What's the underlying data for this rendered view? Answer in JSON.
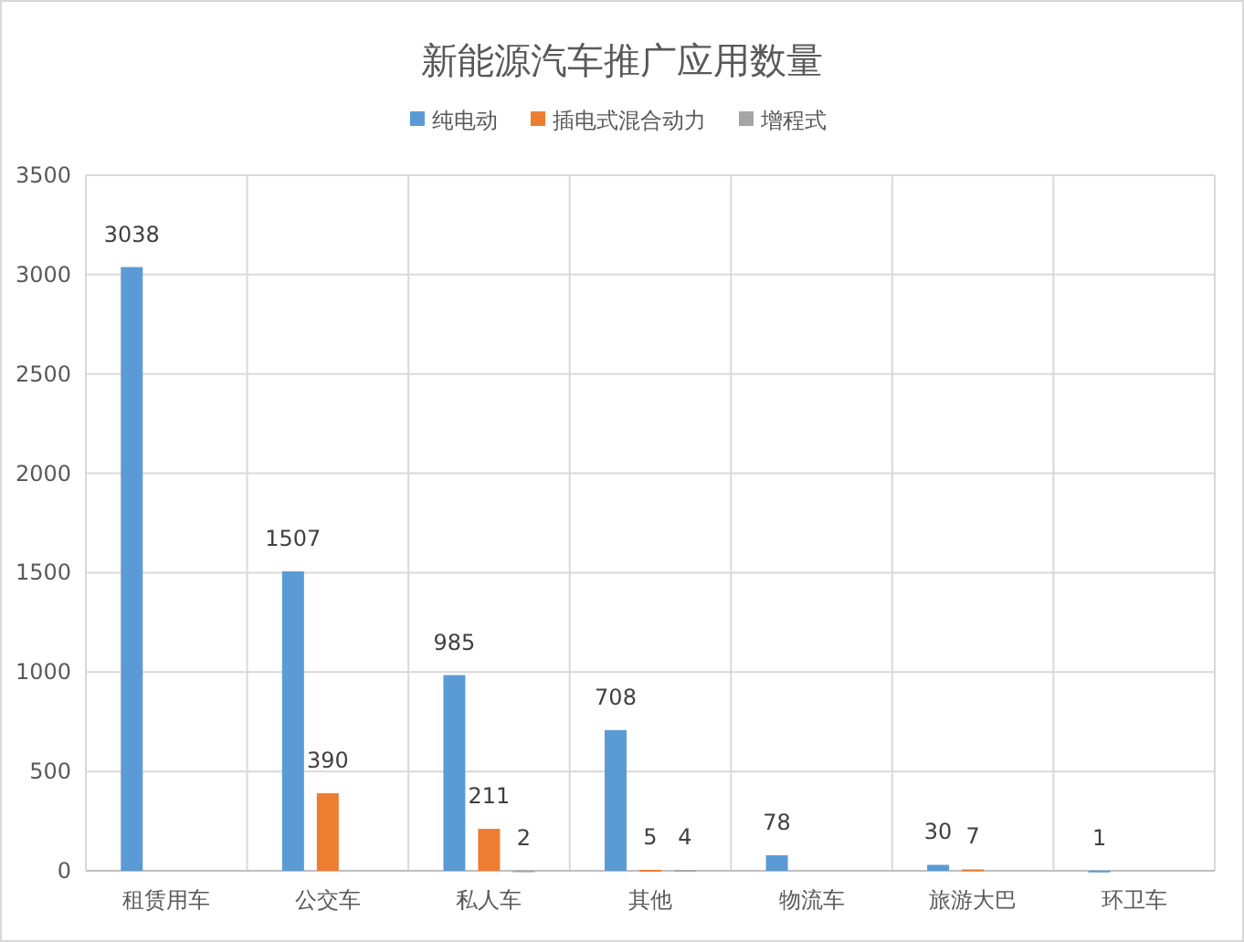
{
  "chart_data": {
    "type": "bar",
    "title": "新能源汽车推广应用数量",
    "categories": [
      "租赁用车",
      "公交车",
      "私人车",
      "其他",
      "物流车",
      "旅游大巴",
      "环卫车"
    ],
    "series": [
      {
        "name": "纯电动",
        "color": "#5b9bd5",
        "values": [
          3038,
          1507,
          985,
          708,
          78,
          30,
          1
        ]
      },
      {
        "name": "插电式混合动力",
        "color": "#ed7d31",
        "values": [
          null,
          390,
          211,
          5,
          null,
          7,
          null
        ]
      },
      {
        "name": "增程式",
        "color": "#a5a5a5",
        "values": [
          null,
          null,
          2,
          4,
          null,
          null,
          null
        ]
      }
    ],
    "ylim": [
      0,
      3500
    ],
    "yticks": [
      0,
      500,
      1000,
      1500,
      2000,
      2500,
      3000,
      3500
    ],
    "grid": true,
    "legend": "top",
    "data_labels": true
  }
}
